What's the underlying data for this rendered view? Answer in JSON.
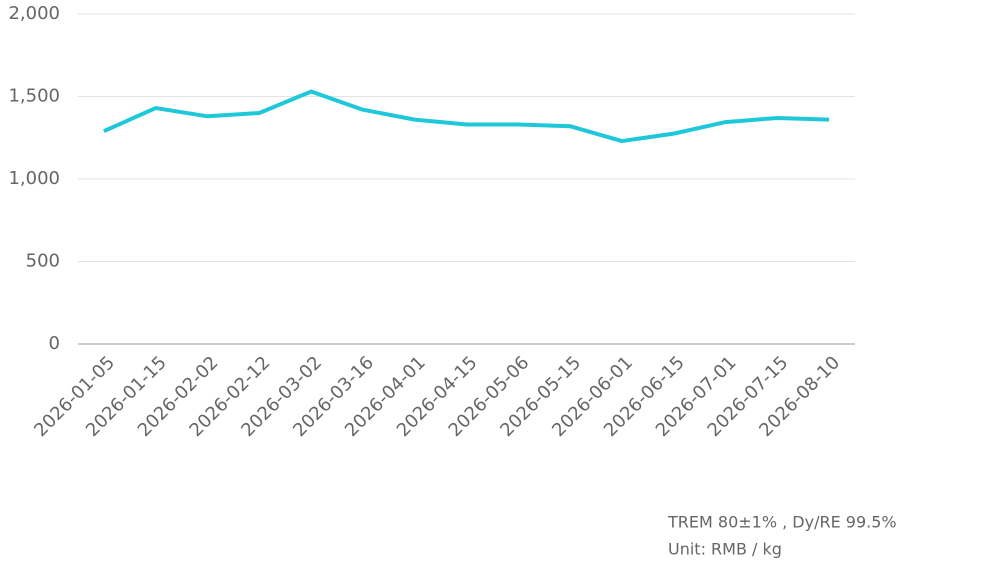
{
  "chart_data": {
    "type": "line",
    "categories": [
      "2026-01-05",
      "2026-01-15",
      "2026-02-02",
      "2026-02-12",
      "2026-03-02",
      "2026-03-16",
      "2026-04-01",
      "2026-04-15",
      "2026-05-06",
      "2026-05-15",
      "2026-06-01",
      "2026-06-15",
      "2026-07-01",
      "2026-07-15",
      "2026-08-10"
    ],
    "series": [
      {
        "color": "#1ec8d8",
        "values": [
          1290,
          1430,
          1380,
          1400,
          1530,
          1420,
          1360,
          1330,
          1330,
          1320,
          1230,
          1275,
          1345,
          1370,
          1360
        ]
      }
    ],
    "ylim": [
      0,
      2000
    ],
    "yticks": [
      0,
      500,
      {
        "value": 1000,
        "label": "1,000"
      },
      {
        "value": 1500,
        "label": "1,500"
      },
      {
        "value": 2000,
        "label": "2,000"
      }
    ],
    "grid": true,
    "notes": [
      "TREM 80±1% , Dy/RE 99.5%",
      "Unit: RMB / kg"
    ]
  }
}
